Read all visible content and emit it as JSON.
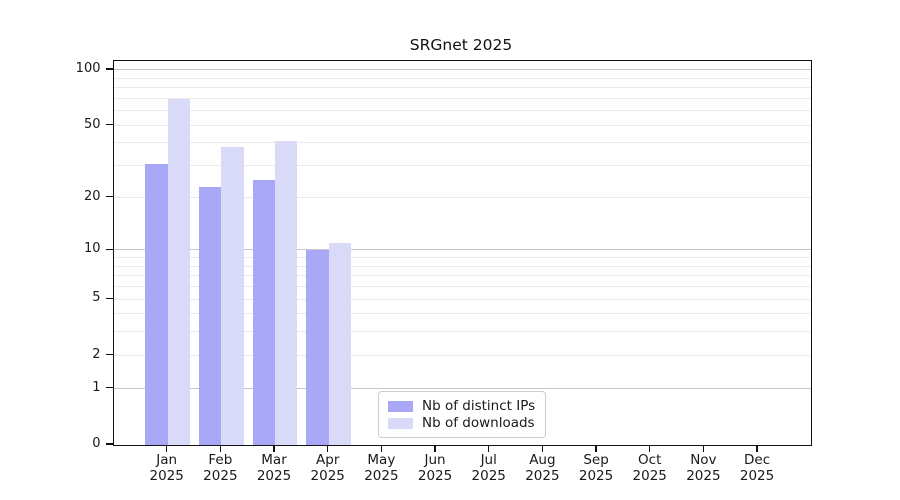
{
  "title": "SRGnet 2025",
  "chart_data": {
    "type": "bar",
    "title": "SRGnet 2025",
    "categories": [
      "Jan 2025",
      "Feb 2025",
      "Mar 2025",
      "Apr 2025",
      "May 2025",
      "Jun 2025",
      "Jul 2025",
      "Aug 2025",
      "Sep 2025",
      "Oct 2025",
      "Nov 2025",
      "Dec 2025"
    ],
    "months": [
      "Jan",
      "Feb",
      "Mar",
      "Apr",
      "May",
      "Jun",
      "Jul",
      "Aug",
      "Sep",
      "Oct",
      "Nov",
      "Dec"
    ],
    "year": "2025",
    "series": [
      {
        "name": "Nb of distinct IPs",
        "color": "#a8a8f7",
        "values": [
          31,
          23,
          25,
          10,
          0,
          0,
          0,
          0,
          0,
          0,
          0,
          0
        ]
      },
      {
        "name": "Nb of downloads",
        "color": "#d9d9f8",
        "values": [
          70,
          38,
          41,
          11,
          0,
          0,
          0,
          0,
          0,
          0,
          0,
          0
        ]
      }
    ],
    "y_scale": "log10(1+value)",
    "y_ticks": [
      0,
      1,
      2,
      5,
      10,
      20,
      50,
      100
    ],
    "y_major_gridlines": [
      1,
      10,
      100
    ],
    "y_minor_gridlines": [
      2,
      3,
      4,
      5,
      6,
      7,
      8,
      9,
      20,
      30,
      40,
      50,
      60,
      70,
      80,
      90
    ],
    "ylim": [
      0,
      113
    ],
    "legend_position": "lower-center-inside",
    "grid": true,
    "xlabel": "",
    "ylabel": ""
  },
  "colors": {
    "axis": "#111111",
    "grid_major": "#c6c6c6",
    "grid_minor": "#ebebeb",
    "legend_border": "#cccccc",
    "background": "#ffffff"
  }
}
